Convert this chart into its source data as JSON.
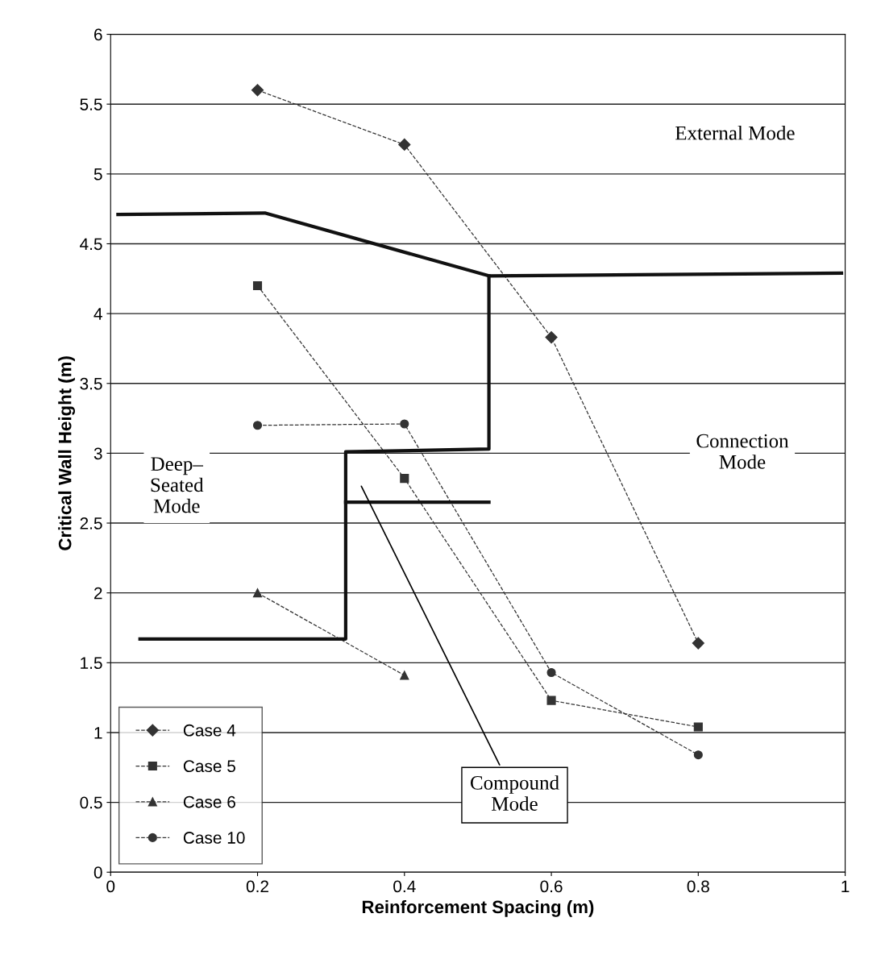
{
  "chart_data": {
    "type": "line",
    "xlabel": "Reinforcement Spacing (m)",
    "ylabel": "Critical Wall Height (m)",
    "xlim": [
      0,
      1
    ],
    "xticks": [
      0,
      0.2,
      0.4,
      0.6,
      0.8,
      1
    ],
    "ylim": [
      0,
      6
    ],
    "yticks": [
      0,
      0.5,
      1,
      1.5,
      2,
      2.5,
      3,
      3.5,
      4,
      4.5,
      5,
      5.5,
      6
    ],
    "grid": "y",
    "legend": "bottom left",
    "series": [
      {
        "name": "Case 4",
        "color": "#333333",
        "marker": "diamond",
        "line_style": "dashed",
        "x": [
          0.2,
          0.4,
          0.6,
          0.8
        ],
        "values": [
          5.6,
          5.21,
          3.83,
          1.64
        ]
      },
      {
        "name": "Case 5",
        "color": "#333333",
        "marker": "square",
        "line_style": "dashed",
        "x": [
          0.2,
          0.4,
          0.6,
          0.8
        ],
        "values": [
          4.2,
          2.82,
          1.23,
          1.04
        ]
      },
      {
        "name": "Case 6",
        "color": "#333333",
        "marker": "triangle",
        "line_style": "dashed",
        "x": [
          0.2,
          0.4
        ],
        "values": [
          2.0,
          1.41
        ]
      },
      {
        "name": "Case 10",
        "color": "#333333",
        "marker": "circle",
        "line_style": "dashed",
        "x": [
          0.2,
          0.4,
          0.6,
          0.8
        ],
        "values": [
          3.2,
          3.21,
          1.43,
          0.84
        ]
      },
      {
        "color": "#111111",
        "marker": "none",
        "line_style": "solid",
        "x": [
          0.01,
          0.21,
          0.515,
          0.995
        ],
        "values": [
          4.71,
          4.72,
          4.27,
          4.29
        ]
      },
      {
        "color": "#111111",
        "marker": "none",
        "line_style": "solid",
        "x": [
          0.04,
          0.32,
          0.32,
          0.515,
          0.515
        ],
        "values": [
          1.67,
          1.67,
          3.01,
          3.03,
          4.27
        ]
      },
      {
        "color": "#111111",
        "marker": "none",
        "line_style": "solid",
        "x": [
          0.32,
          0.515
        ],
        "values": [
          2.65,
          2.65
        ]
      }
    ],
    "annotations": [
      "External Mode",
      "Connection\nMode",
      "Deep–\nSeated\nMode",
      "Compound\nMode"
    ]
  }
}
